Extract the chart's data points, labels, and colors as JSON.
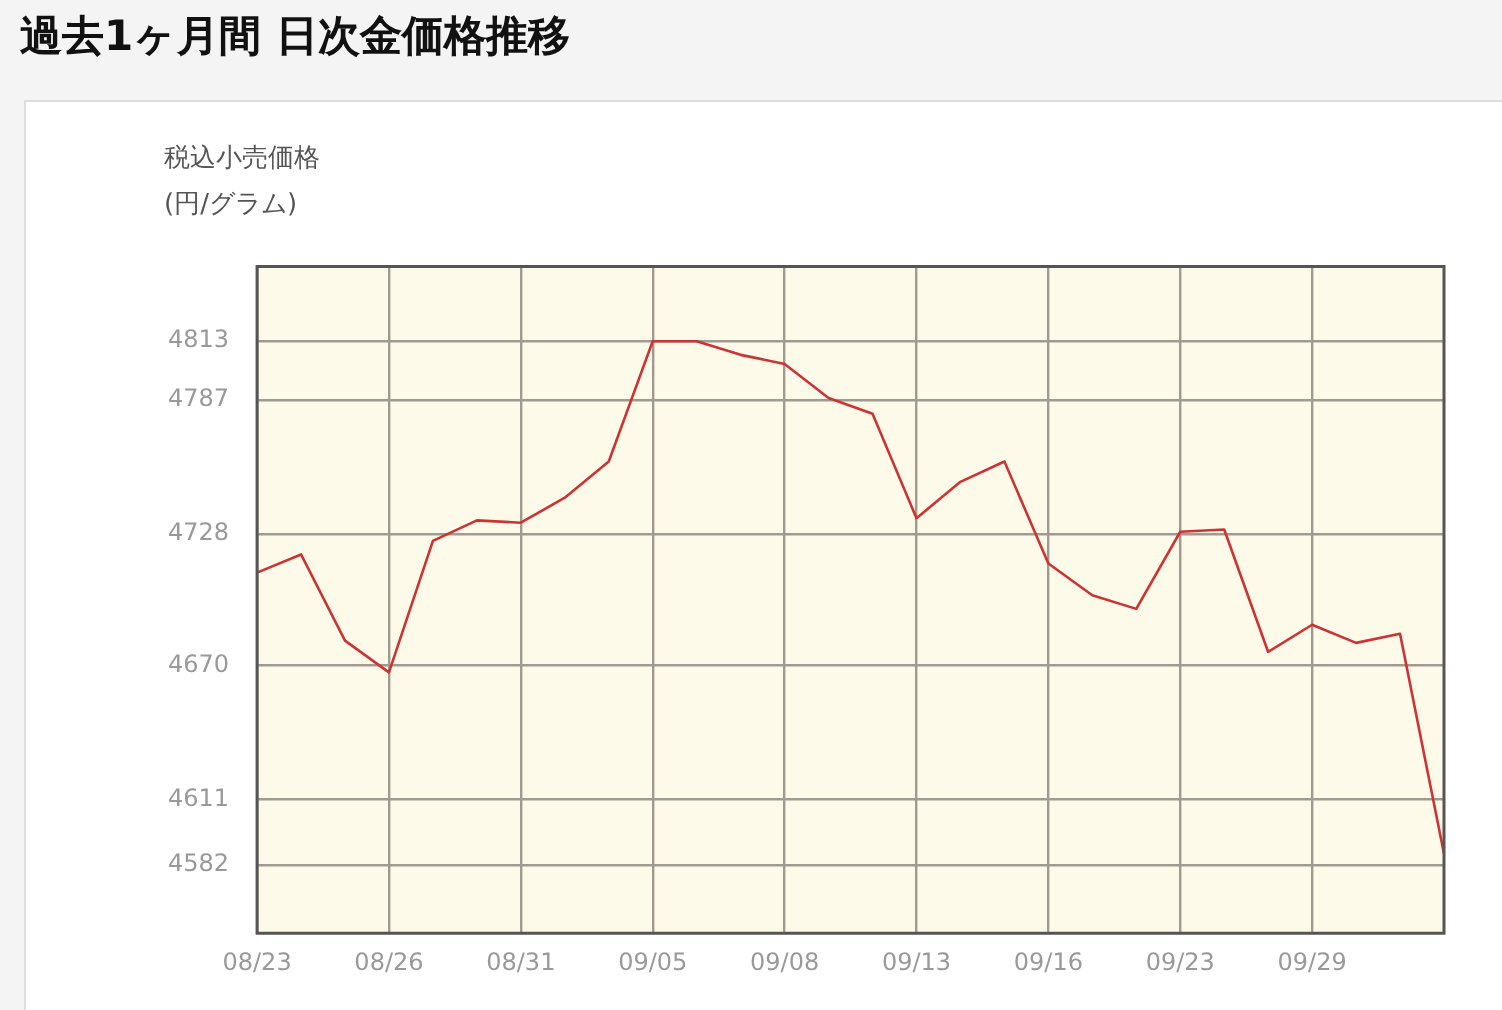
{
  "chart_data": {
    "type": "line",
    "title": "過去1ヶ月間 日次金価格推移",
    "subtitle": "税込小売価格",
    "ylabel": "(円/グラム)",
    "categories": [
      "08/23",
      null,
      null,
      "08/26",
      null,
      null,
      "08/31",
      null,
      null,
      "09/05",
      null,
      null,
      "09/08",
      null,
      null,
      "09/13",
      null,
      null,
      "09/16",
      null,
      null,
      "09/23",
      null,
      null,
      "09/29",
      null,
      null,
      null
    ],
    "series": [
      {
        "color": "#cc3333",
        "values": [
          4711,
          4719,
          4681,
          4667,
          4725,
          4734,
          4733,
          4744,
          4760,
          4813,
          4813,
          4807,
          4803,
          4788,
          4781,
          4735,
          4751,
          4760,
          4715,
          4701,
          4695,
          4729,
          4730,
          4676,
          4688,
          4680,
          4684,
          4587
        ]
      }
    ],
    "ylim": [
      4552,
      4846
    ],
    "yticks": [
      4582,
      4611,
      4670,
      4728,
      4787,
      4813
    ],
    "grid": true,
    "legend": false,
    "marker": "none",
    "line_style": "solid"
  }
}
